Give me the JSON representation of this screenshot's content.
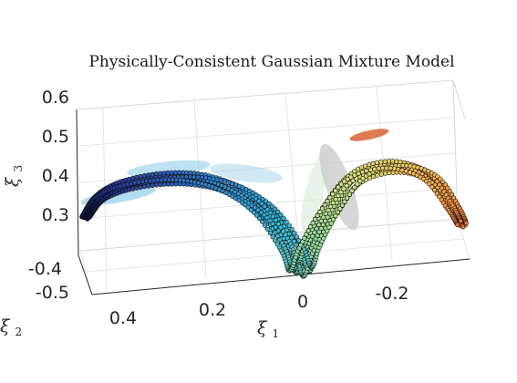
{
  "chart_data": {
    "type": "scatter",
    "projection": "3d",
    "title": "Physically-Consistent Gaussian Mixture Model",
    "axes": {
      "x": {
        "symbol": "ξ",
        "subscript": "1",
        "ticks": [
          "0.4",
          "0.2",
          "0",
          "-0.2"
        ]
      },
      "y": {
        "symbol": "ξ",
        "subscript": "2",
        "ticks": [
          "-0.4",
          "-0.5"
        ]
      },
      "z": {
        "symbol": "ξ",
        "subscript": "3",
        "ticks": [
          "0.6",
          "0.5",
          "0.4",
          "0.3"
        ]
      }
    },
    "grid": true,
    "colormap": [
      "#0a0f3c",
      "#2b3f9e",
      "#2f7fc8",
      "#35b8d9",
      "#7fd6a8",
      "#cfe27a",
      "#f4b356",
      "#e8742f"
    ],
    "series": [
      {
        "values": [
          [
            0.46,
            -0.48,
            0.33
          ],
          [
            0.43,
            -0.48,
            0.38
          ],
          [
            0.38,
            -0.47,
            0.42
          ],
          [
            0.3,
            -0.46,
            0.45
          ],
          [
            0.22,
            -0.45,
            0.46
          ],
          [
            0.14,
            -0.45,
            0.44
          ],
          [
            0.07,
            -0.45,
            0.39
          ],
          [
            0.02,
            -0.44,
            0.31
          ],
          [
            0.0,
            -0.44,
            0.26
          ],
          [
            -0.02,
            -0.44,
            0.32
          ],
          [
            -0.06,
            -0.43,
            0.42
          ],
          [
            -0.12,
            -0.43,
            0.51
          ],
          [
            -0.2,
            -0.42,
            0.55
          ],
          [
            -0.28,
            -0.42,
            0.53
          ],
          [
            -0.33,
            -0.42,
            0.46
          ],
          [
            -0.35,
            -0.42,
            0.42
          ]
        ]
      }
    ],
    "gaussian_components": [
      {
        "color": "#87c9e6"
      },
      {
        "color": "#87c9e6"
      },
      {
        "color": "#9fd2e8"
      },
      {
        "color": "#d9ead9"
      },
      {
        "color": "#c8c8c8"
      },
      {
        "color": "#d45a2a"
      }
    ]
  }
}
